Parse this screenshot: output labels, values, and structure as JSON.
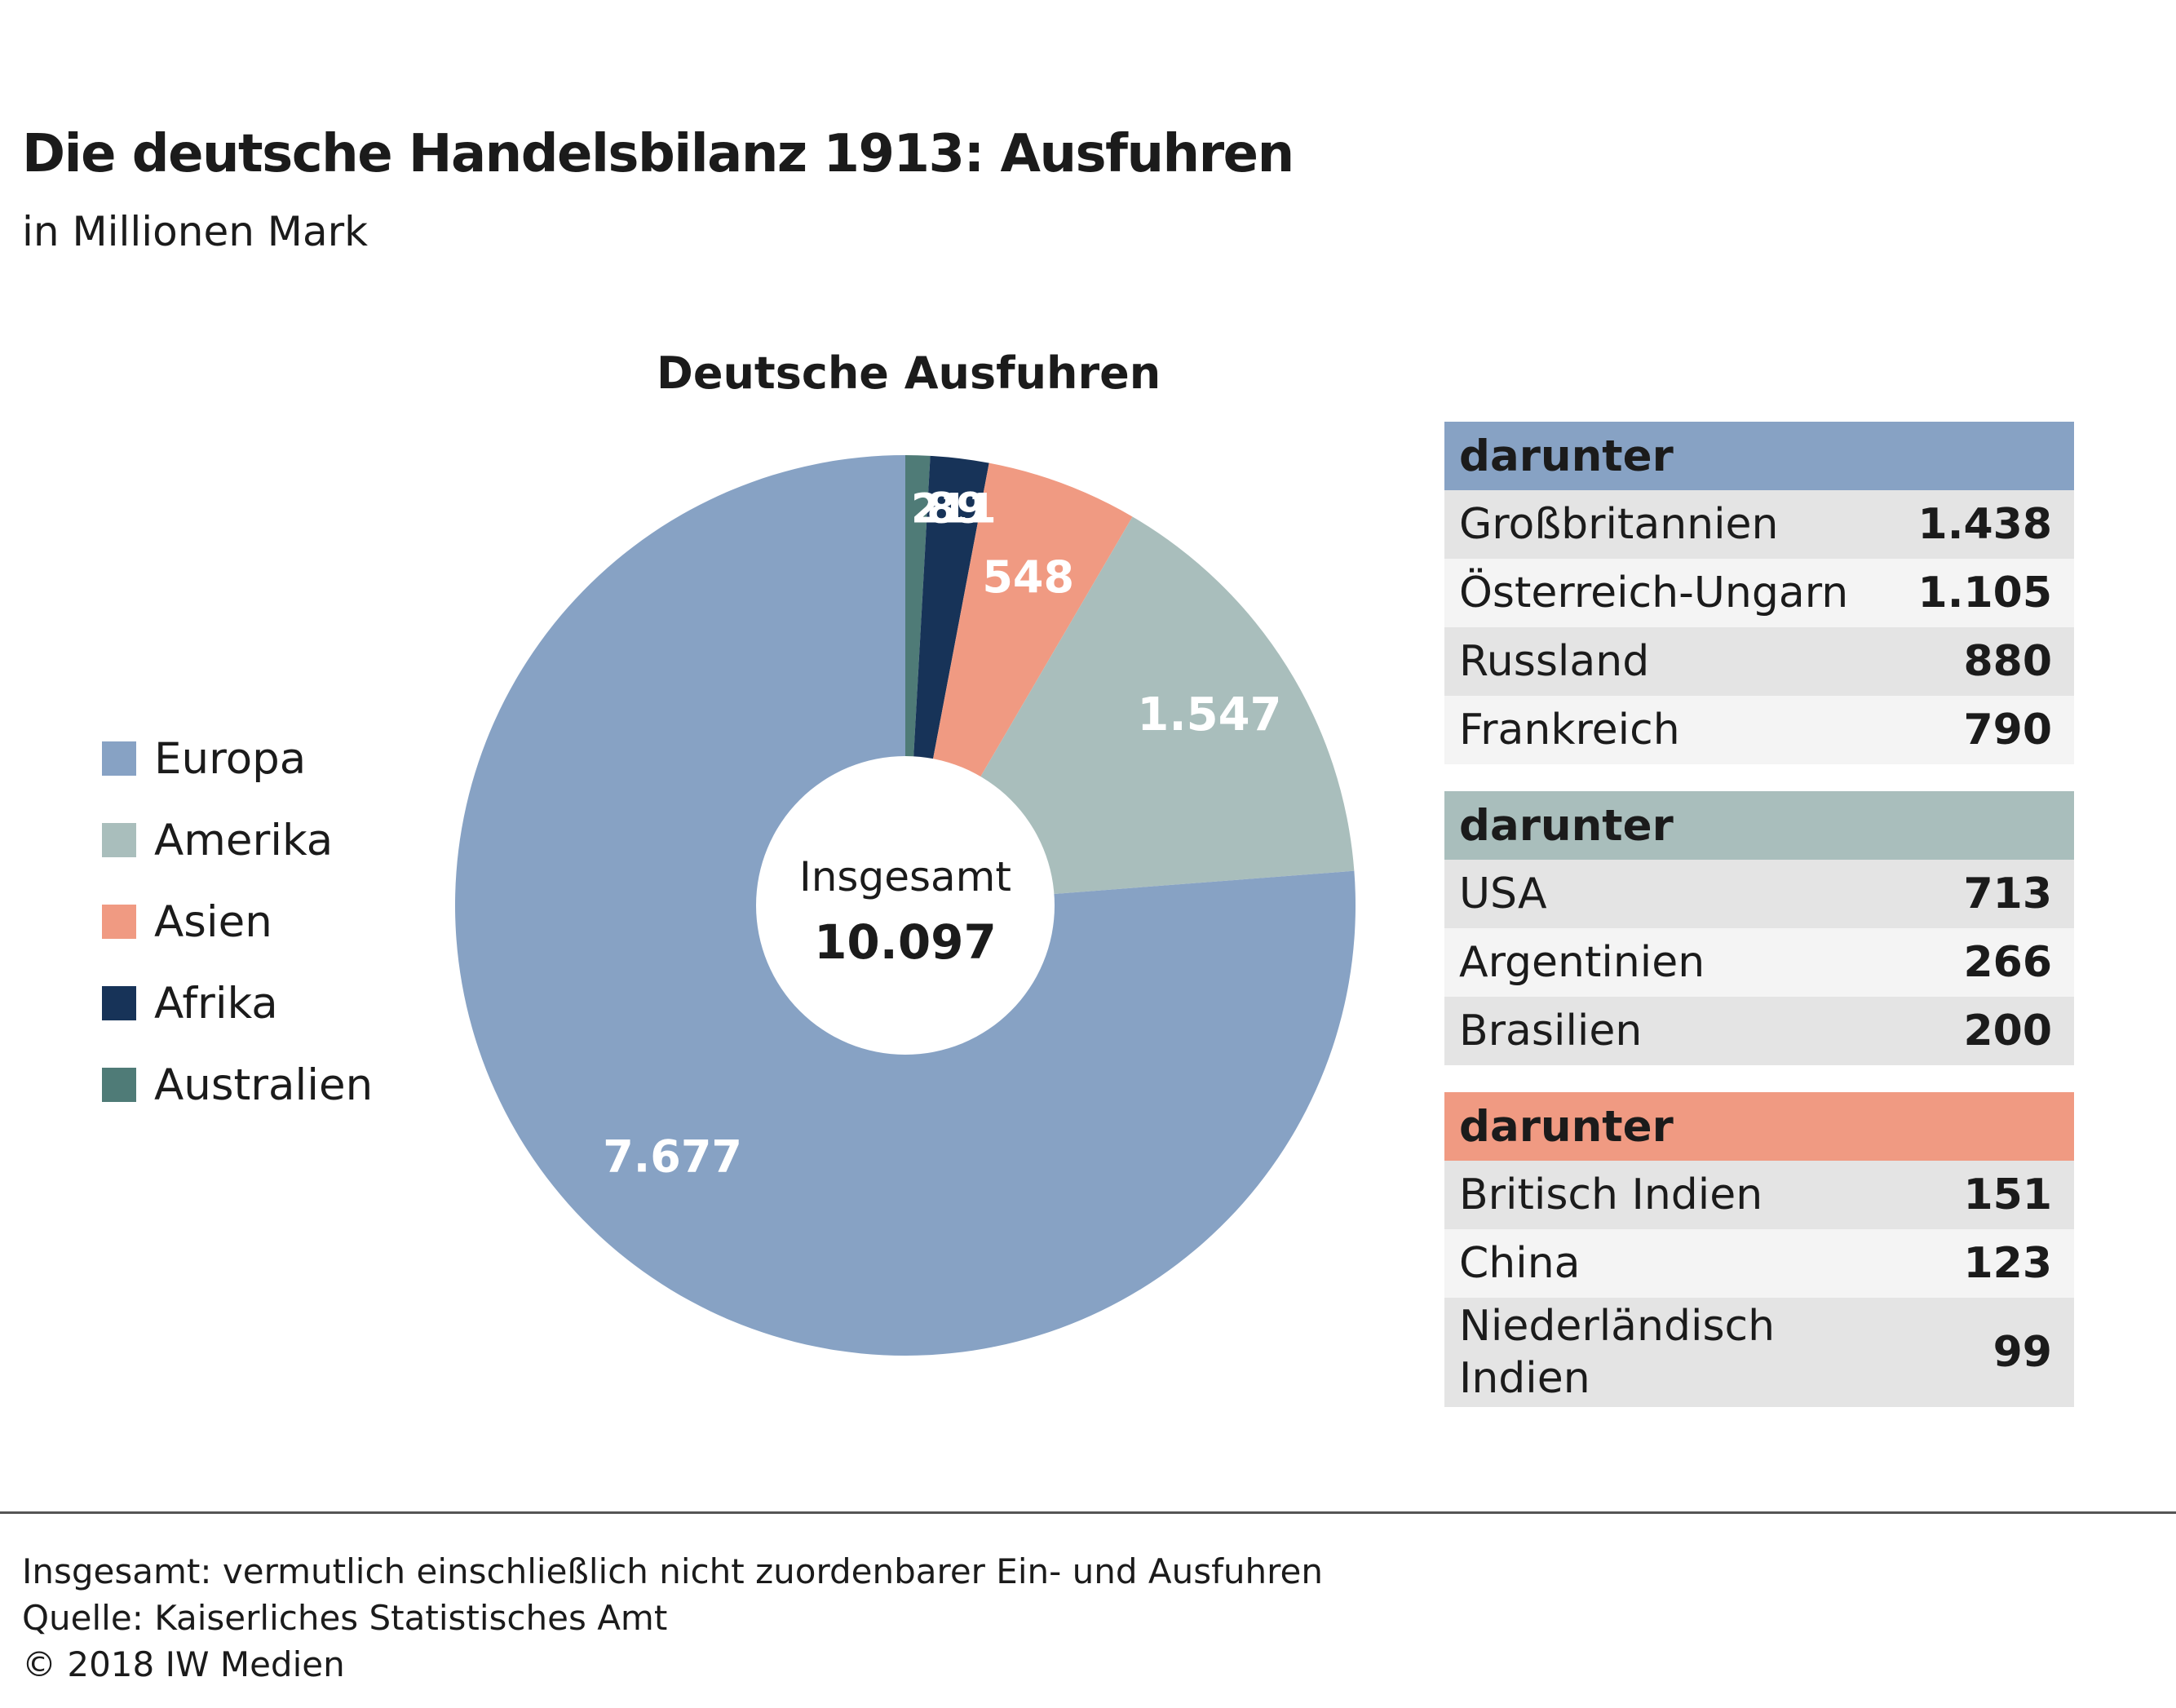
{
  "header": {
    "title": "Die deutsche Handelsbilanz 1913: Ausfuhren",
    "subtitle": "in Millionen Mark"
  },
  "chart_data": {
    "type": "pie",
    "title": "Deutsche Ausfuhren",
    "center_label": "Insgesamt",
    "center_value": "10.097",
    "total": 10097,
    "legend_position": "left",
    "slices": [
      {
        "name": "Europa",
        "value": 7677,
        "label": "7.677",
        "color": "#87a2c4"
      },
      {
        "name": "Amerika",
        "value": 1547,
        "label": "1.547",
        "color": "#a9bebc"
      },
      {
        "name": "Asien",
        "value": 548,
        "label": "548",
        "color": "#f09a82"
      },
      {
        "name": "Afrika",
        "value": 211,
        "label": "211",
        "color": "#173358"
      },
      {
        "name": "Australien",
        "value": 89,
        "label": "89",
        "color": "#4f7b77"
      }
    ]
  },
  "tables": [
    {
      "header": "darunter",
      "color": "#87a2c4",
      "rows": [
        {
          "label": "Großbritannien",
          "value": "1.438"
        },
        {
          "label": "Österreich-Ungarn",
          "value": "1.105"
        },
        {
          "label": "Russland",
          "value": "880"
        },
        {
          "label": "Frankreich",
          "value": "790"
        }
      ]
    },
    {
      "header": "darunter",
      "color": "#a9bebc",
      "rows": [
        {
          "label": "USA",
          "value": "713"
        },
        {
          "label": "Argentinien",
          "value": "266"
        },
        {
          "label": "Brasilien",
          "value": "200"
        }
      ]
    },
    {
      "header": "darunter",
      "color": "#f09a82",
      "rows": [
        {
          "label": "Britisch Indien",
          "value": "151"
        },
        {
          "label": "China",
          "value": "123"
        },
        {
          "label": "Niederländisch Indien",
          "value": "99"
        }
      ]
    }
  ],
  "footer": {
    "note": "Insgesamt: vermutlich einschließlich nicht zuordenbarer Ein- und Ausfuhren",
    "source": "Quelle: Kaiserliches Statistisches Amt",
    "copyright": "© 2018 IW Medien"
  }
}
